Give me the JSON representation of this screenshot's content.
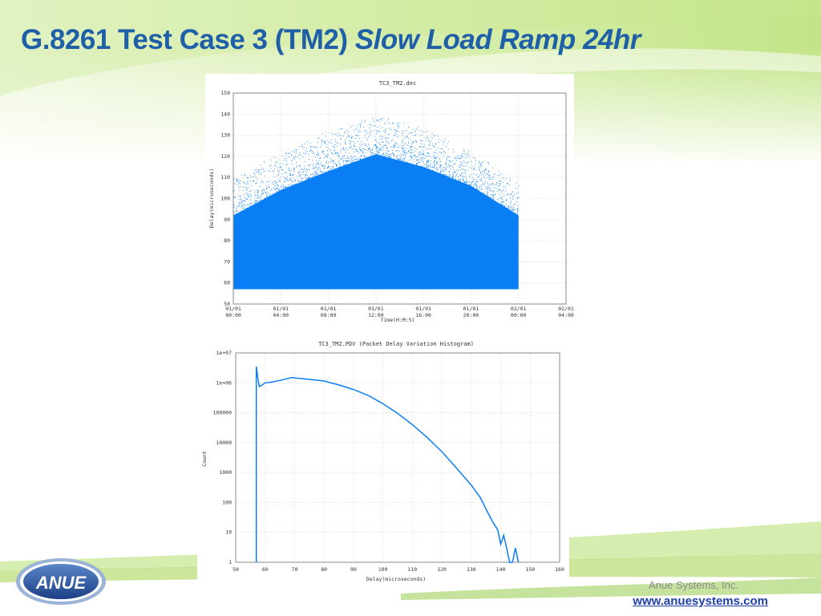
{
  "slide": {
    "title_main": "G.8261 Test Case 3 (TM2) ",
    "title_italic": "Slow Load Ramp 24hr",
    "company": "Anue Systems, Inc.",
    "website": "www.anuesystems.com",
    "logo_text": "ANUE"
  },
  "colors": {
    "title": "#1f5fa8",
    "series": "#0a7ff5",
    "background_green": "#b9e07a",
    "website": "#1f3fa8"
  },
  "chart_data": [
    {
      "type": "scatter",
      "title": "TC3_TM2.dec",
      "xlabel": "Time(H:M:S)",
      "ylabel": "Delay(microseconds)",
      "xlim": [
        "01/01 00:00",
        "02/01 04:00"
      ],
      "ylim": [
        50,
        150
      ],
      "grid": true,
      "x_ticks": [
        {
          "line1": "01/01",
          "line2": "00:00"
        },
        {
          "line1": "01/01",
          "line2": "04:00"
        },
        {
          "line1": "01/01",
          "line2": "08:00"
        },
        {
          "line1": "01/01",
          "line2": "12:00"
        },
        {
          "line1": "01/01",
          "line2": "16:00"
        },
        {
          "line1": "01/01",
          "line2": "20:00"
        },
        {
          "line1": "02/01",
          "line2": "00:00"
        },
        {
          "line1": "02/01",
          "line2": "04:00"
        }
      ],
      "y_ticks": [
        "50",
        "60",
        "70",
        "80",
        "90",
        "100",
        "110",
        "120",
        "130",
        "140",
        "150"
      ],
      "data_hours_range": [
        0,
        24
      ],
      "min_delay": 57,
      "band_top": [
        {
          "hours": 0,
          "delay": 92
        },
        {
          "hours": 4,
          "delay": 104
        },
        {
          "hours": 8,
          "delay": 113
        },
        {
          "hours": 12,
          "delay": 121
        },
        {
          "hours": 16,
          "delay": 115
        },
        {
          "hours": 20,
          "delay": 106
        },
        {
          "hours": 24,
          "delay": 92
        }
      ],
      "scatter_max": [
        {
          "hours": 0,
          "delay": 110
        },
        {
          "hours": 4,
          "delay": 122
        },
        {
          "hours": 8,
          "delay": 133
        },
        {
          "hours": 12,
          "delay": 140
        },
        {
          "hours": 16,
          "delay": 134
        },
        {
          "hours": 20,
          "delay": 123
        },
        {
          "hours": 24,
          "delay": 108
        }
      ]
    },
    {
      "type": "line",
      "title": "TC3_TM2.PDV (Packet Delay Variation Histogram)",
      "xlabel": "Delay(microseconds)",
      "ylabel": "Count",
      "xlim": [
        50,
        160
      ],
      "ylim": [
        1,
        10000000
      ],
      "yscale": "log",
      "grid": true,
      "x_ticks": [
        "50",
        "60",
        "70",
        "80",
        "90",
        "100",
        "110",
        "120",
        "130",
        "140",
        "150",
        "160"
      ],
      "y_ticks": [
        "1",
        "10",
        "100",
        "1000",
        "10000",
        "100000",
        "1e+06",
        "1e+07"
      ],
      "series": [
        {
          "x": [
            57,
            57,
            57.5,
            58,
            59,
            60,
            62,
            65,
            69,
            75,
            80,
            85,
            90,
            95,
            100,
            105,
            110,
            115,
            120,
            125,
            130,
            133,
            135,
            137,
            139,
            140,
            141,
            142,
            143,
            144,
            145,
            146,
            146
          ],
          "y": [
            1,
            3500000,
            1500000,
            750000,
            850000,
            1000000,
            1050000,
            1200000,
            1500000,
            1300000,
            1150000,
            850000,
            600000,
            380000,
            200000,
            95000,
            40000,
            15000,
            5000,
            1400,
            380,
            150,
            60,
            25,
            12,
            4,
            8,
            3,
            1,
            1,
            3,
            1,
            1
          ]
        }
      ]
    }
  ]
}
